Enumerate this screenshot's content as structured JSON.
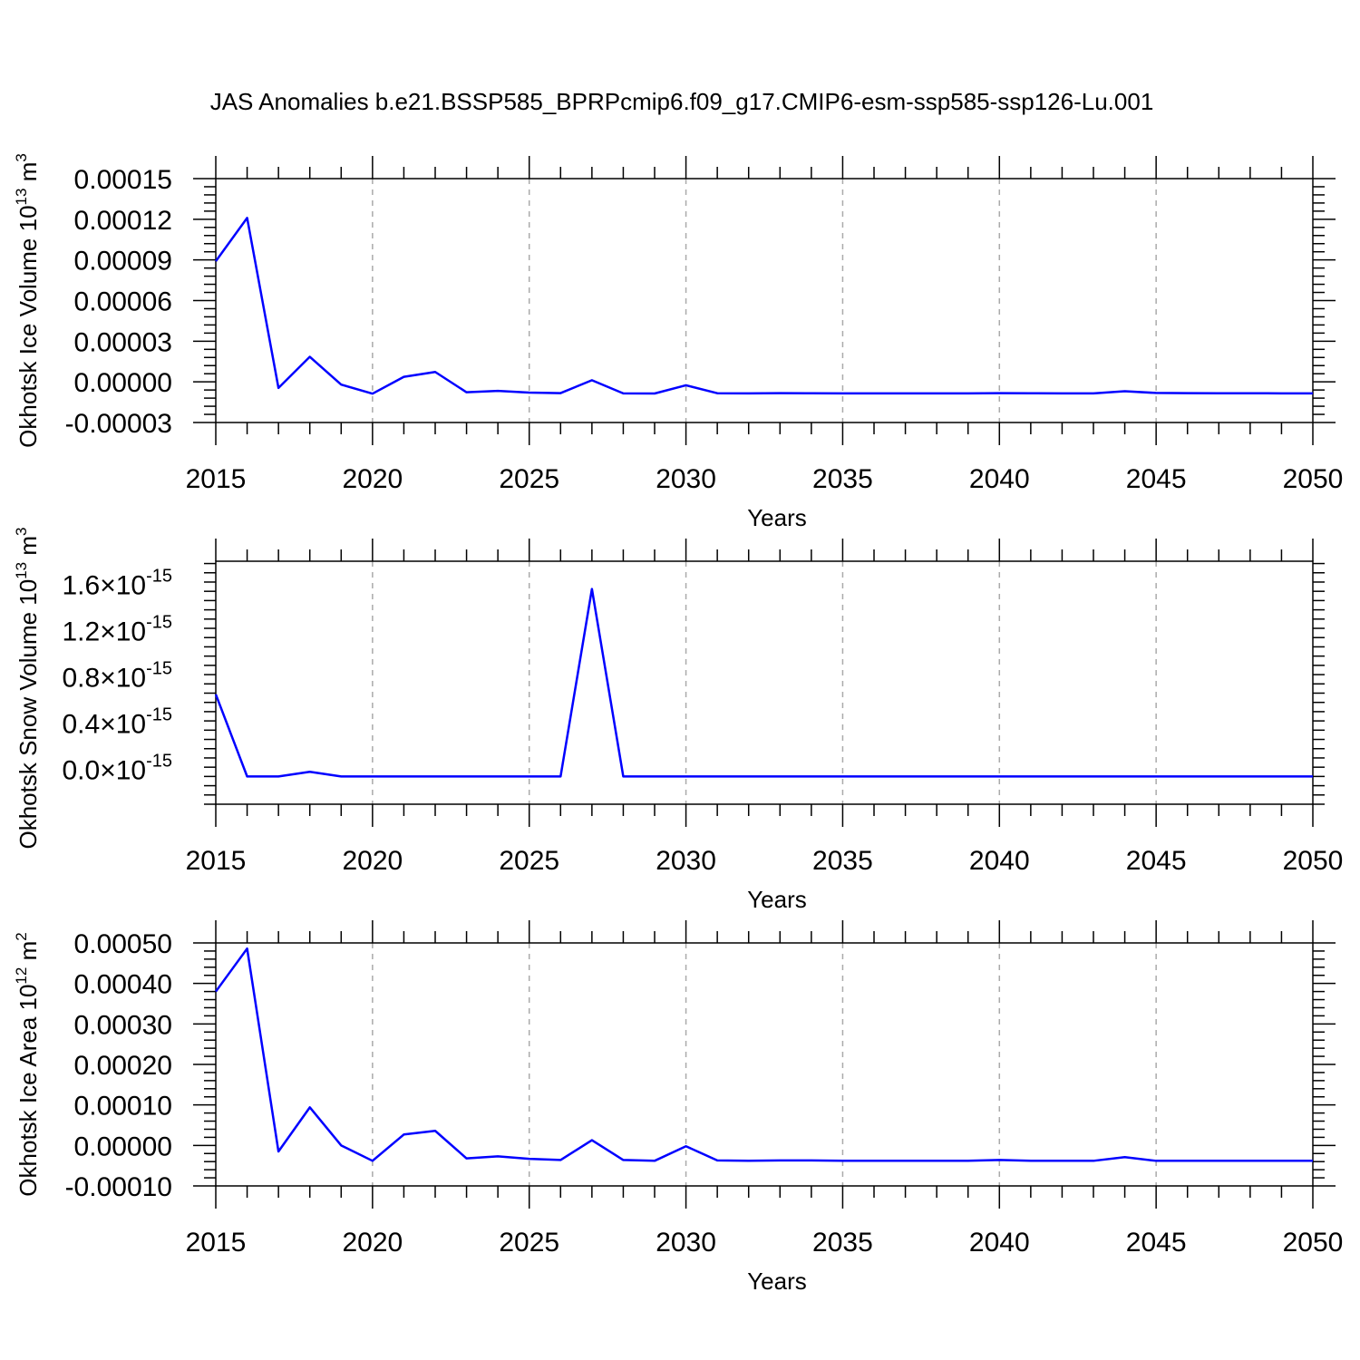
{
  "title": "JAS Anomalies b.e21.BSSP585_BPRPcmip6.f09_g17.CMIP6-esm-ssp585-ssp126-Lu.001",
  "colors": {
    "line": "#0000ff",
    "axis": "#000000",
    "grid": "#aaaaaa"
  },
  "chart_data": [
    {
      "type": "line",
      "title": "",
      "xlabel": "Years",
      "ylabel": "Okhotsk Ice Volume 10",
      "ylabel_exp": "13",
      "ylabel_unit": "m",
      "ylabel_unit_exp": "3",
      "xlim": [
        2015,
        2050
      ],
      "ylim": [
        -3e-05,
        0.00015
      ],
      "x_ticks": [
        "2015",
        "2020",
        "2025",
        "2030",
        "2035",
        "2040",
        "2045",
        "2050"
      ],
      "y_ticks": [
        {
          "value": 0.00015,
          "label": "0.00015"
        },
        {
          "value": 0.00012,
          "label": "0.00012"
        },
        {
          "value": 9e-05,
          "label": "0.00009"
        },
        {
          "value": 6e-05,
          "label": "0.00006"
        },
        {
          "value": 3e-05,
          "label": "0.00003"
        },
        {
          "value": 0.0,
          "label": "0.00000"
        },
        {
          "value": -3e-05,
          "label": "-0.00003"
        }
      ],
      "grid": "vertical dashed at major x ticks",
      "x": [
        2015,
        2016,
        2017,
        2018,
        2019,
        2020,
        2021,
        2022,
        2023,
        2024,
        2025,
        2026,
        2027,
        2028,
        2029,
        2030,
        2031,
        2032,
        2033,
        2034,
        2035,
        2036,
        2037,
        2038,
        2039,
        2040,
        2041,
        2042,
        2043,
        2044,
        2045,
        2046,
        2047,
        2048,
        2049,
        2050
      ],
      "values": [
        8.9e-05,
        0.000121,
        -4.5e-06,
        1.85e-05,
        -2e-06,
        -8.7e-06,
        3.7e-06,
        7.3e-06,
        -7.7e-06,
        -6.7e-06,
        -7.9e-06,
        -8.3e-06,
        1.2e-06,
        -8.5e-06,
        -8.6e-06,
        -2.5e-06,
        -8.4e-06,
        -8.5e-06,
        -8.3e-06,
        -8.4e-06,
        -8.5e-06,
        -8.5e-06,
        -8.5e-06,
        -8.5e-06,
        -8.5e-06,
        -8.3e-06,
        -8.4e-06,
        -8.5e-06,
        -8.5e-06,
        -6.9e-06,
        -8.2e-06,
        -8.3e-06,
        -8.4e-06,
        -8.4e-06,
        -8.5e-06,
        -8.5e-06
      ]
    },
    {
      "type": "line",
      "title": "",
      "xlabel": "Years",
      "ylabel": "Okhotsk Snow Volume 10",
      "ylabel_exp": "13",
      "ylabel_unit": "m",
      "ylabel_unit_exp": "3",
      "xlim": [
        2015,
        2050
      ],
      "ylim": [
        -3e-16,
        1.8e-15
      ],
      "x_ticks": [
        "2015",
        "2020",
        "2025",
        "2030",
        "2035",
        "2040",
        "2045",
        "2050"
      ],
      "y_ticks": [
        {
          "value": 1.6e-15,
          "mant": "1.6",
          "base": "10",
          "exp": "-15"
        },
        {
          "value": 1.2e-15,
          "mant": "1.2",
          "base": "10",
          "exp": "-15"
        },
        {
          "value": 8e-16,
          "mant": "0.8",
          "base": "10",
          "exp": "-15"
        },
        {
          "value": 4e-16,
          "mant": "0.4",
          "base": "10",
          "exp": "-15"
        },
        {
          "value": 0.0,
          "mant": "0.0",
          "base": "10",
          "exp": "-15"
        }
      ],
      "grid": "vertical dashed at major x ticks",
      "x": [
        2015,
        2016,
        2017,
        2018,
        2019,
        2020,
        2021,
        2022,
        2023,
        2024,
        2025,
        2026,
        2027,
        2028,
        2029,
        2030,
        2031,
        2032,
        2033,
        2034,
        2035,
        2036,
        2037,
        2038,
        2039,
        2040,
        2041,
        2042,
        2043,
        2044,
        2045,
        2046,
        2047,
        2048,
        2049,
        2050
      ],
      "values": [
        6.5e-16,
        -6e-17,
        -6e-17,
        -2e-17,
        -6e-17,
        -6e-17,
        -6e-17,
        -6e-17,
        -6e-17,
        -6e-17,
        -6e-17,
        -6e-17,
        1.56e-15,
        -6e-17,
        -6e-17,
        -6e-17,
        -6e-17,
        -6e-17,
        -6e-17,
        -6e-17,
        -6e-17,
        -6e-17,
        -6e-17,
        -6e-17,
        -6e-17,
        -6e-17,
        -6e-17,
        -6e-17,
        -6e-17,
        -6e-17,
        -6e-17,
        -6e-17,
        -6e-17,
        -6e-17,
        -6e-17,
        -6e-17
      ]
    },
    {
      "type": "line",
      "title": "",
      "xlabel": "Years",
      "ylabel": "Okhotsk Ice Area 10",
      "ylabel_exp": "12",
      "ylabel_unit": "m",
      "ylabel_unit_exp": "2",
      "xlim": [
        2015,
        2050
      ],
      "ylim": [
        -0.0001,
        0.0005
      ],
      "x_ticks": [
        "2015",
        "2020",
        "2025",
        "2030",
        "2035",
        "2040",
        "2045",
        "2050"
      ],
      "y_ticks": [
        {
          "value": 0.0005,
          "label": "0.00050"
        },
        {
          "value": 0.0004,
          "label": "0.00040"
        },
        {
          "value": 0.0003,
          "label": "0.00030"
        },
        {
          "value": 0.0002,
          "label": "0.00020"
        },
        {
          "value": 0.0001,
          "label": "0.00010"
        },
        {
          "value": 0.0,
          "label": "0.00000"
        },
        {
          "value": -0.0001,
          "label": "-0.00010"
        }
      ],
      "grid": "vertical dashed at major x ticks",
      "x": [
        2015,
        2016,
        2017,
        2018,
        2019,
        2020,
        2021,
        2022,
        2023,
        2024,
        2025,
        2026,
        2027,
        2028,
        2029,
        2030,
        2031,
        2032,
        2033,
        2034,
        2035,
        2036,
        2037,
        2038,
        2039,
        2040,
        2041,
        2042,
        2043,
        2044,
        2045,
        2046,
        2047,
        2048,
        2049,
        2050
      ],
      "values": [
        0.00038,
        0.000486,
        -1.5e-05,
        9.4e-05,
        0.0,
        -3.8e-05,
        2.7e-05,
        3.6e-05,
        -3.2e-05,
        -2.7e-05,
        -3.3e-05,
        -3.6e-05,
        1.3e-05,
        -3.6e-05,
        -3.8e-05,
        -2e-06,
        -3.7e-05,
        -3.8e-05,
        -3.7e-05,
        -3.7e-05,
        -3.8e-05,
        -3.8e-05,
        -3.8e-05,
        -3.8e-05,
        -3.8e-05,
        -3.6e-05,
        -3.8e-05,
        -3.8e-05,
        -3.8e-05,
        -2.9e-05,
        -3.8e-05,
        -3.8e-05,
        -3.8e-05,
        -3.8e-05,
        -3.8e-05,
        -3.8e-05
      ]
    }
  ]
}
